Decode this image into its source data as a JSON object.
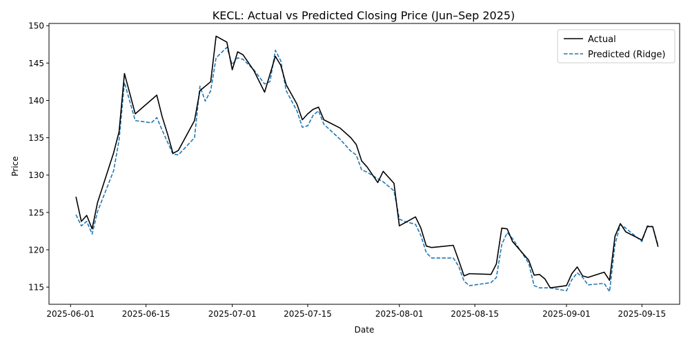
{
  "chart_data": {
    "type": "line",
    "title": "KECL: Actual vs Predicted Closing Price (Jun–Sep 2025)",
    "xlabel": "Date",
    "ylabel": "Price",
    "xlim": [
      "2025-05-28",
      "2025-09-22"
    ],
    "ylim": [
      112.7,
      150.3
    ],
    "x_ticks": [
      "2025-06-01",
      "2025-06-15",
      "2025-07-01",
      "2025-07-15",
      "2025-08-01",
      "2025-08-15",
      "2025-09-01",
      "2025-09-15"
    ],
    "y_ticks": [
      115,
      120,
      125,
      130,
      135,
      140,
      145,
      150
    ],
    "grid": false,
    "legend_position": "top-right",
    "series": [
      {
        "name": "Actual",
        "color": "#000000",
        "style": "solid",
        "points": [
          [
            "2025-06-02",
            127.1
          ],
          [
            "2025-06-03",
            123.8
          ],
          [
            "2025-06-04",
            124.6
          ],
          [
            "2025-06-05",
            122.8
          ],
          [
            "2025-06-06",
            126.3
          ],
          [
            "2025-06-09",
            133.0
          ],
          [
            "2025-06-10",
            135.8
          ],
          [
            "2025-06-11",
            143.6
          ],
          [
            "2025-06-13",
            138.2
          ],
          [
            "2025-06-17",
            140.7
          ],
          [
            "2025-06-18",
            137.8
          ],
          [
            "2025-06-19",
            135.5
          ],
          [
            "2025-06-20",
            132.9
          ],
          [
            "2025-06-21",
            133.3
          ],
          [
            "2025-06-24",
            137.3
          ],
          [
            "2025-06-25",
            141.3
          ],
          [
            "2025-06-27",
            142.5
          ],
          [
            "2025-06-28",
            148.6
          ],
          [
            "2025-06-30",
            147.8
          ],
          [
            "2025-07-01",
            144.1
          ],
          [
            "2025-07-02",
            146.5
          ],
          [
            "2025-07-03",
            146.1
          ],
          [
            "2025-07-05",
            144.0
          ],
          [
            "2025-07-07",
            141.1
          ],
          [
            "2025-07-09",
            145.9
          ],
          [
            "2025-07-10",
            144.7
          ],
          [
            "2025-07-11",
            142.1
          ],
          [
            "2025-07-13",
            139.5
          ],
          [
            "2025-07-14",
            137.4
          ],
          [
            "2025-07-15",
            138.2
          ],
          [
            "2025-07-16",
            138.8
          ],
          [
            "2025-07-17",
            139.1
          ],
          [
            "2025-07-18",
            137.4
          ],
          [
            "2025-07-21",
            136.3
          ],
          [
            "2025-07-23",
            135.0
          ],
          [
            "2025-07-24",
            134.1
          ],
          [
            "2025-07-25",
            131.9
          ],
          [
            "2025-07-26",
            131.1
          ],
          [
            "2025-07-28",
            129.0
          ],
          [
            "2025-07-29",
            130.5
          ],
          [
            "2025-07-31",
            128.9
          ],
          [
            "2025-08-01",
            123.2
          ],
          [
            "2025-08-04",
            124.4
          ],
          [
            "2025-08-05",
            122.9
          ],
          [
            "2025-08-06",
            120.5
          ],
          [
            "2025-08-07",
            120.3
          ],
          [
            "2025-08-11",
            120.6
          ],
          [
            "2025-08-12",
            118.6
          ],
          [
            "2025-08-13",
            116.5
          ],
          [
            "2025-08-14",
            116.8
          ],
          [
            "2025-08-18",
            116.7
          ],
          [
            "2025-08-19",
            118.1
          ],
          [
            "2025-08-20",
            122.9
          ],
          [
            "2025-08-21",
            122.8
          ],
          [
            "2025-08-22",
            121.1
          ],
          [
            "2025-08-25",
            118.6
          ],
          [
            "2025-08-26",
            116.6
          ],
          [
            "2025-08-27",
            116.7
          ],
          [
            "2025-08-28",
            116.1
          ],
          [
            "2025-08-29",
            114.9
          ],
          [
            "2025-09-01",
            115.2
          ],
          [
            "2025-09-02",
            116.8
          ],
          [
            "2025-09-03",
            117.7
          ],
          [
            "2025-09-04",
            116.5
          ],
          [
            "2025-09-05",
            116.3
          ],
          [
            "2025-09-08",
            117.0
          ],
          [
            "2025-09-09",
            115.9
          ],
          [
            "2025-09-10",
            121.8
          ],
          [
            "2025-09-11",
            123.5
          ],
          [
            "2025-09-12",
            122.4
          ],
          [
            "2025-09-15",
            121.3
          ],
          [
            "2025-09-16",
            123.1
          ],
          [
            "2025-09-17",
            123.1
          ],
          [
            "2025-09-18",
            120.4
          ]
        ]
      },
      {
        "name": "Predicted (Ridge)",
        "color": "#1f77b4",
        "style": "dashed",
        "points": [
          [
            "2025-06-02",
            124.7
          ],
          [
            "2025-06-03",
            123.2
          ],
          [
            "2025-06-04",
            123.8
          ],
          [
            "2025-06-05",
            122.1
          ],
          [
            "2025-06-06",
            125.1
          ],
          [
            "2025-06-09",
            130.6
          ],
          [
            "2025-06-10",
            134.7
          ],
          [
            "2025-06-11",
            142.4
          ],
          [
            "2025-06-13",
            137.3
          ],
          [
            "2025-06-16",
            137.0
          ],
          [
            "2025-06-17",
            137.7
          ],
          [
            "2025-06-18",
            136.0
          ],
          [
            "2025-06-20",
            132.8
          ],
          [
            "2025-06-21",
            132.7
          ],
          [
            "2025-06-24",
            135.0
          ],
          [
            "2025-06-25",
            141.9
          ],
          [
            "2025-06-26",
            139.9
          ],
          [
            "2025-06-27",
            141.3
          ],
          [
            "2025-06-28",
            145.7
          ],
          [
            "2025-06-30",
            147.1
          ],
          [
            "2025-07-01",
            144.8
          ],
          [
            "2025-07-02",
            145.7
          ],
          [
            "2025-07-03",
            145.5
          ],
          [
            "2025-07-05",
            144.1
          ],
          [
            "2025-07-07",
            142.2
          ],
          [
            "2025-07-08",
            142.5
          ],
          [
            "2025-07-09",
            146.7
          ],
          [
            "2025-07-10",
            145.3
          ],
          [
            "2025-07-11",
            141.3
          ],
          [
            "2025-07-13",
            138.6
          ],
          [
            "2025-07-14",
            136.4
          ],
          [
            "2025-07-15",
            136.6
          ],
          [
            "2025-07-16",
            138.0
          ],
          [
            "2025-07-17",
            138.6
          ],
          [
            "2025-07-18",
            136.8
          ],
          [
            "2025-07-21",
            134.8
          ],
          [
            "2025-07-23",
            133.2
          ],
          [
            "2025-07-24",
            132.7
          ],
          [
            "2025-07-25",
            130.7
          ],
          [
            "2025-07-26",
            130.4
          ],
          [
            "2025-07-28",
            129.5
          ],
          [
            "2025-07-29",
            129.1
          ],
          [
            "2025-07-31",
            127.9
          ],
          [
            "2025-08-01",
            124.1
          ],
          [
            "2025-08-02",
            123.8
          ],
          [
            "2025-08-04",
            123.4
          ],
          [
            "2025-08-05",
            121.9
          ],
          [
            "2025-08-06",
            119.6
          ],
          [
            "2025-08-07",
            118.9
          ],
          [
            "2025-08-11",
            118.9
          ],
          [
            "2025-08-12",
            117.8
          ],
          [
            "2025-08-13",
            115.8
          ],
          [
            "2025-08-14",
            115.2
          ],
          [
            "2025-08-18",
            115.6
          ],
          [
            "2025-08-19",
            116.3
          ],
          [
            "2025-08-20",
            120.7
          ],
          [
            "2025-08-21",
            122.3
          ],
          [
            "2025-08-22",
            121.5
          ],
          [
            "2025-08-25",
            118.2
          ],
          [
            "2025-08-26",
            115.2
          ],
          [
            "2025-08-27",
            114.9
          ],
          [
            "2025-08-29",
            114.9
          ],
          [
            "2025-09-01",
            114.5
          ],
          [
            "2025-09-02",
            116.0
          ],
          [
            "2025-09-03",
            116.9
          ],
          [
            "2025-09-04",
            116.3
          ],
          [
            "2025-09-05",
            115.3
          ],
          [
            "2025-09-08",
            115.5
          ],
          [
            "2025-09-09",
            114.4
          ],
          [
            "2025-09-10",
            120.7
          ],
          [
            "2025-09-11",
            123.4
          ],
          [
            "2025-09-12",
            122.9
          ],
          [
            "2025-09-15",
            121.1
          ],
          [
            "2025-09-16",
            123.2
          ],
          [
            "2025-09-17",
            123.1
          ],
          [
            "2025-09-18",
            120.6
          ]
        ]
      }
    ]
  }
}
